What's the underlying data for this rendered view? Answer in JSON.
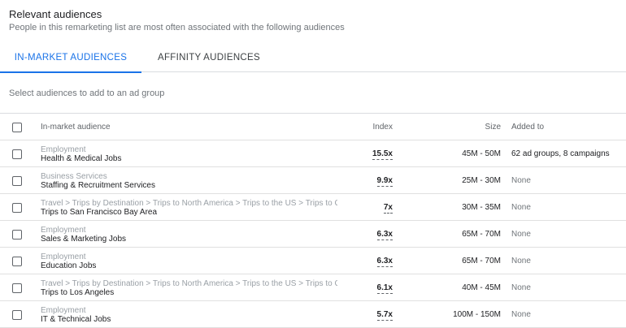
{
  "header": {
    "title": "Relevant audiences",
    "subtitle": "People in this remarketing list are most often associated with the following audiences"
  },
  "tabs": [
    {
      "label": "IN-MARKET AUDIENCES",
      "active": true
    },
    {
      "label": "AFFINITY AUDIENCES",
      "active": false
    }
  ],
  "hint": "Select audiences to add to an ad group",
  "table": {
    "columns": {
      "name": "In-market audience",
      "index": "Index",
      "size": "Size",
      "added": "Added to"
    },
    "rows": [
      {
        "category": "Employment",
        "audience": "Health & Medical Jobs",
        "index": "15.5x",
        "size": "45M - 50M",
        "added": "62 ad groups, 8 campaigns"
      },
      {
        "category": "Business Services",
        "audience": "Staffing & Recruitment Services",
        "index": "9.9x",
        "size": "25M - 30M",
        "added": "None"
      },
      {
        "category": "Travel > Trips by Destination > Trips to North America > Trips to the US > Trips to Cali",
        "audience": "Trips to San Francisco Bay Area",
        "index": "7x",
        "size": "30M - 35M",
        "added": "None"
      },
      {
        "category": "Employment",
        "audience": "Sales & Marketing Jobs",
        "index": "6.3x",
        "size": "65M - 70M",
        "added": "None"
      },
      {
        "category": "Employment",
        "audience": "Education Jobs",
        "index": "6.3x",
        "size": "65M - 70M",
        "added": "None"
      },
      {
        "category": "Travel > Trips by Destination > Trips to North America > Trips to the US > Trips to Cali",
        "audience": "Trips to Los Angeles",
        "index": "6.1x",
        "size": "40M - 45M",
        "added": "None"
      },
      {
        "category": "Employment",
        "audience": "IT & Technical Jobs",
        "index": "5.7x",
        "size": "100M - 150M",
        "added": "None"
      }
    ]
  },
  "colors": {
    "accent": "#1a73e8",
    "muted_text": "#70757a",
    "divider": "#dadce0"
  }
}
